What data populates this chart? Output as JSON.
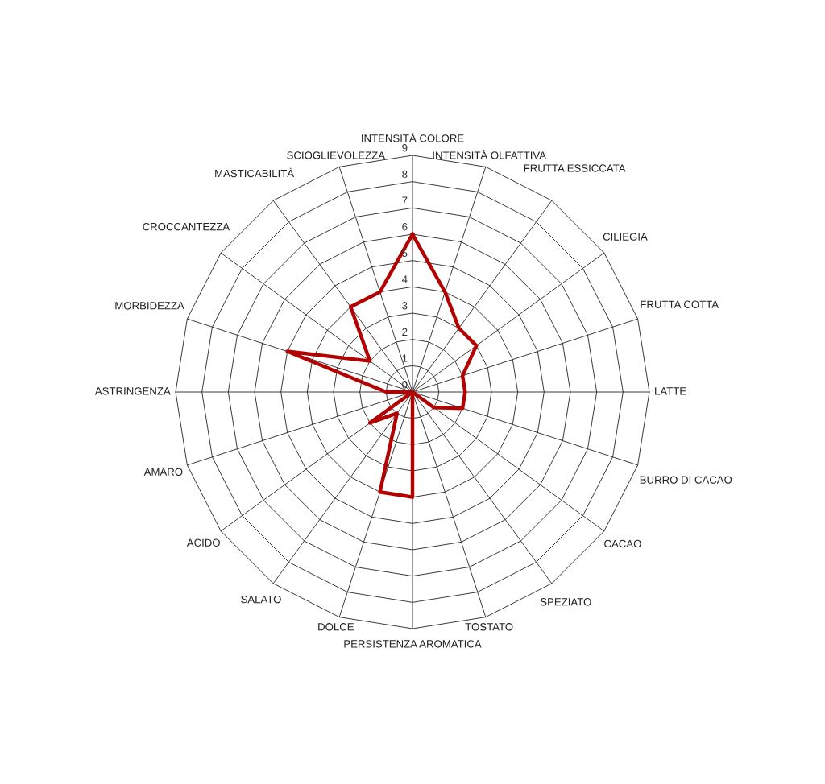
{
  "chart_data": {
    "type": "radar",
    "categories": [
      "INTENSITÀ COLORE",
      "INTENSITÀ OLFATTIVA",
      "FRUTTA ESSICCATA",
      "CILIEGIA",
      "FRUTTA COTTA",
      "LATTE",
      "BURRO DI CACAO",
      "CACAO",
      "SPEZIATO",
      "TOSTATO",
      "PERSISTENZA AROMATICA",
      "DOLCE",
      "SALATO",
      "ACIDO",
      "AMARO",
      "ASTRINGENZA",
      "MORBIDEZZA",
      "CROCCANTEZZA",
      "MASTICABILITÀ",
      "SCIOGLIEVOLEZZA"
    ],
    "series": [
      {
        "color": "#b30000",
        "values": [
          6,
          4,
          3,
          3,
          2,
          2,
          2,
          1,
          0,
          0,
          4,
          4,
          1,
          2,
          0,
          1,
          5,
          2,
          4,
          4
        ]
      }
    ],
    "ylim": [
      0,
      9
    ],
    "yticks": [
      0,
      1,
      2,
      3,
      4,
      5,
      6,
      7,
      8,
      9
    ],
    "grid": true,
    "marker": "none",
    "line_style": "solid"
  }
}
